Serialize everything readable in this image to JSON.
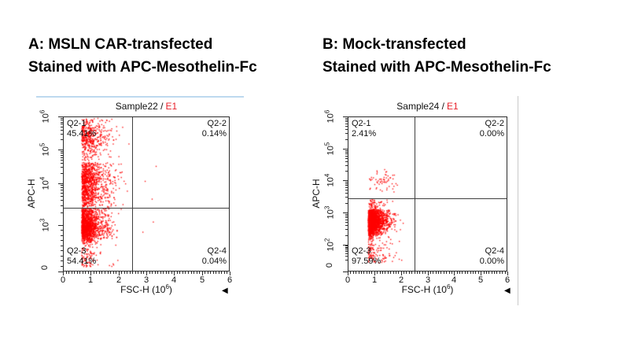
{
  "icons": {
    "axis_arrow": "◀"
  },
  "colors": {
    "dot": "#ff0000",
    "gate_line": "#3f3f3f",
    "frame": "#2b2b2b",
    "title_highlight": "#e8202a",
    "selection_line": "#bdd9ef",
    "divider": "#c9c9c9",
    "heading": "#000000"
  },
  "panels": [
    {
      "id": "A",
      "heading_line1": "A: MSLN CAR-transfected",
      "heading_line2": "Stained with APC-Mesothelin-Fc"
    },
    {
      "id": "B",
      "heading_line1": "B: Mock-transfected",
      "heading_line2": "Stained with APC-Mesothelin-Fc"
    }
  ],
  "chart_data": {
    "type": "scatter",
    "subtype": "flow-cytometry-dot-plot",
    "plots": [
      {
        "title_prefix": "Sample22 /",
        "title_highlight": "E1",
        "x_axis": {
          "label_pre": "FSC-H (10",
          "label_exp": "6",
          "label_suffix": ")",
          "range": [
            0,
            6
          ],
          "ticks": [
            0,
            1,
            2,
            3,
            4,
            5,
            6
          ],
          "minor_step": 0.1
        },
        "y_axis": {
          "label": "APC-H",
          "scale": "biexponential",
          "ticks": [
            {
              "label": "0"
            },
            {
              "base": "10",
              "exp": "3"
            },
            {
              "base": "10",
              "exp": "4"
            },
            {
              "base": "10",
              "exp": "5"
            },
            {
              "base": "10",
              "exp": "6"
            }
          ]
        },
        "gate": {
          "x": 2.5,
          "y_log10": 3.415
        },
        "quadrants": [
          {
            "id": "Q2-1",
            "pct": "45.41%"
          },
          {
            "id": "Q2-2",
            "pct": "0.14%"
          },
          {
            "id": "Q2-3",
            "pct": "54.41%"
          },
          {
            "id": "Q2-4",
            "pct": "0.04%"
          }
        ],
        "populations": [
          {
            "name": "car-positive-high",
            "n": 480,
            "x": {
              "type": "edge",
              "edge": 0.68,
              "sigma": 0.3,
              "tail": 0.9,
              "tailFrac": 0.2,
              "max": 2.45
            },
            "y": {
              "dist": "norm",
              "mean": 5.35,
              "sd": 0.33,
              "min": 4.62,
              "max": 5.97
            }
          },
          {
            "name": "car-positive-mid",
            "n": 1050,
            "x": {
              "type": "edge",
              "edge": 0.68,
              "sigma": 0.3,
              "tail": 1.0,
              "tailFrac": 0.2,
              "max": 2.45
            },
            "y": {
              "dist": "norm",
              "mean": 4.0,
              "sd": 0.42,
              "min": 3.43,
              "max": 4.62
            }
          },
          {
            "name": "car-negative-main",
            "n": 1500,
            "x": {
              "type": "edge",
              "edge": 0.68,
              "sigma": 0.27,
              "tail": 0.9,
              "tailFrac": 0.16,
              "max": 2.45
            },
            "y": {
              "dist": "norm",
              "mean": 2.98,
              "sd": 0.33,
              "min": 2.1,
              "max": 3.4
            }
          },
          {
            "name": "car-negative-low",
            "n": 90,
            "x": {
              "type": "edge",
              "edge": 0.68,
              "sigma": 0.3,
              "tail": 0.9,
              "tailFrac": 0.2,
              "max": 2.3
            },
            "y": {
              "dist": "uniform",
              "min": 1.35,
              "max": 2.1
            }
          },
          {
            "name": "q2-2-events",
            "n": 3,
            "x": {
              "type": "norm",
              "mean": 3.1,
              "sd": 0.2,
              "min": 2.6,
              "max": 3.7
            },
            "y": {
              "dist": "norm",
              "mean": 4.2,
              "sd": 0.5,
              "min": 3.5,
              "max": 5.0
            }
          },
          {
            "name": "q2-4-events",
            "n": 2,
            "x": {
              "type": "norm",
              "mean": 3.1,
              "sd": 0.25,
              "min": 2.6,
              "max": 3.7
            },
            "y": {
              "dist": "norm",
              "mean": 3.0,
              "sd": 0.25,
              "min": 2.5,
              "max": 3.35
            }
          }
        ]
      },
      {
        "title_prefix": "Sample24 /",
        "title_highlight": "E1",
        "x_axis": {
          "label_pre": "FSC-H (10",
          "label_exp": "6",
          "label_suffix": ")",
          "range": [
            0,
            6
          ],
          "ticks": [
            0,
            1,
            2,
            3,
            4,
            5,
            6
          ],
          "minor_step": 0.1
        },
        "y_axis": {
          "label": "APC-H",
          "scale": "biexponential",
          "ticks": [
            {
              "label": "0"
            },
            {
              "base": "10",
              "exp": "2"
            },
            {
              "base": "10",
              "exp": "3"
            },
            {
              "base": "10",
              "exp": "4"
            },
            {
              "base": "10",
              "exp": "5"
            },
            {
              "base": "10",
              "exp": "6"
            }
          ]
        },
        "gate": {
          "x": 2.5,
          "y_log10": 3.44
        },
        "quadrants": [
          {
            "id": "Q2-1",
            "pct": "2.41%"
          },
          {
            "id": "Q2-2",
            "pct": "0.00%"
          },
          {
            "id": "Q2-3",
            "pct": "97.59%"
          },
          {
            "id": "Q2-4",
            "pct": "0.00%"
          }
        ],
        "populations": [
          {
            "name": "mock-main",
            "n": 2300,
            "x": {
              "type": "edge",
              "edge": 0.78,
              "sigma": 0.22,
              "tail": 0.7,
              "tailFrac": 0.15,
              "max": 2.45
            },
            "y": {
              "dist": "norm",
              "mean": 2.72,
              "sd": 0.21,
              "min": 2.12,
              "max": 3.1
            }
          },
          {
            "name": "mock-upper-fringe",
            "n": 70,
            "x": {
              "type": "edge",
              "edge": 0.8,
              "sigma": 0.28,
              "tail": 0.5,
              "tailFrac": 0.2,
              "max": 2.2
            },
            "y": {
              "dist": "uniform",
              "min": 3.05,
              "max": 3.4
            }
          },
          {
            "name": "mock-low-fringe",
            "n": 120,
            "x": {
              "type": "edge",
              "edge": 0.78,
              "sigma": 0.26,
              "tail": 0.9,
              "tailFrac": 0.25,
              "max": 2.4
            },
            "y": {
              "dist": "uniform",
              "min": 1.15,
              "max": 2.12
            }
          },
          {
            "name": "mock-dim-positive",
            "n": 60,
            "x": {
              "type": "norm",
              "mean": 1.25,
              "sd": 0.28,
              "min": 0.82,
              "max": 2.4
            },
            "y": {
              "dist": "norm",
              "mean": 3.95,
              "sd": 0.17,
              "min": 3.52,
              "max": 4.4
            }
          }
        ]
      }
    ]
  }
}
